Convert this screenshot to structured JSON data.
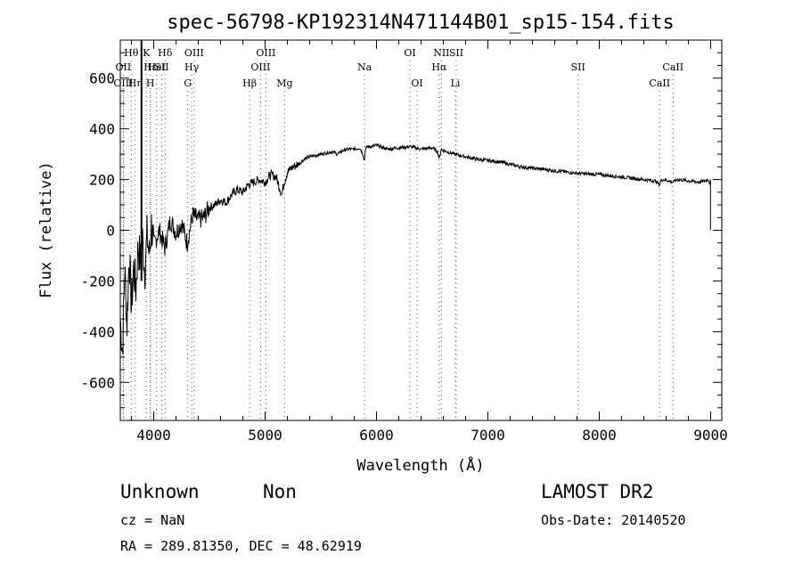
{
  "chart_data": {
    "type": "line",
    "title": "spec-56798-KP192314N471144B01_sp15-154.fits",
    "xlabel": "Wavelength (Å)",
    "ylabel": "Flux (relative)",
    "xlim": [
      3700,
      9100
    ],
    "ylim": [
      -750,
      750
    ],
    "x_ticks": [
      4000,
      5000,
      6000,
      7000,
      8000,
      9000
    ],
    "y_ticks": [
      -600,
      -400,
      -200,
      0,
      200,
      400,
      600
    ],
    "grid": false,
    "line_color": "#000000",
    "spectral_lines": [
      {
        "label": "Hθ",
        "wavelength": 3798,
        "row": 0
      },
      {
        "label": "OII",
        "wavelength": 3727,
        "row": 1
      },
      {
        "label": "OIII",
        "wavelength": 3727,
        "row": 2
      },
      {
        "label": "Hε",
        "wavelength": 3970,
        "row": 1
      },
      {
        "label": "Hη",
        "wavelength": 3835,
        "row": 2
      },
      {
        "label": "K",
        "wavelength": 3934,
        "row": 0
      },
      {
        "label": "H",
        "wavelength": 3969,
        "row": 2
      },
      {
        "label": "Hδ",
        "wavelength": 4102,
        "row": 0
      },
      {
        "label": "HeI",
        "wavelength": 4026,
        "row": 1
      },
      {
        "label": "SII",
        "wavelength": 4072,
        "row": 1
      },
      {
        "label": "OIII",
        "wavelength": 4363,
        "row": 0
      },
      {
        "label": "Hγ",
        "wavelength": 4341,
        "row": 1
      },
      {
        "label": "G",
        "wavelength": 4305,
        "row": 2
      },
      {
        "label": "Hβ",
        "wavelength": 4861,
        "row": 2
      },
      {
        "label": "OIII",
        "wavelength": 4959,
        "row": 1
      },
      {
        "label": "OIII",
        "wavelength": 5007,
        "row": 0
      },
      {
        "label": "Mg",
        "wavelength": 5175,
        "row": 2
      },
      {
        "label": "Na",
        "wavelength": 5893,
        "row": 1
      },
      {
        "label": "OI",
        "wavelength": 6300,
        "row": 0
      },
      {
        "label": "OI",
        "wavelength": 6364,
        "row": 2
      },
      {
        "label": "NII",
        "wavelength": 6583,
        "row": 0
      },
      {
        "label": "Hα",
        "wavelength": 6563,
        "row": 1
      },
      {
        "label": "SII",
        "wavelength": 6716,
        "row": 0
      },
      {
        "label": "Li",
        "wavelength": 6708,
        "row": 2
      },
      {
        "label": "SII",
        "wavelength": 7810,
        "row": 1
      },
      {
        "label": "CaII",
        "wavelength": 8662,
        "row": 1
      },
      {
        "label": "CaII",
        "wavelength": 8542,
        "row": 2
      }
    ],
    "series": [
      {
        "x": [
          3700,
          3720,
          3740,
          3760,
          3780,
          3800,
          3820,
          3840,
          3860,
          3880,
          3900,
          3920,
          3940,
          3960,
          3980,
          4000,
          4050,
          4100,
          4150,
          4200,
          4250,
          4300,
          4350,
          4400,
          4450,
          4500,
          4550,
          4600,
          4650,
          4700,
          4750,
          4800,
          4850,
          4900,
          4950,
          5000,
          5050,
          5100,
          5150,
          5170,
          5180,
          5200,
          5250,
          5300,
          5350,
          5400,
          5450,
          5500,
          5550,
          5600,
          5650,
          5700,
          5750,
          5800,
          5850,
          5880,
          5890,
          5900,
          5920,
          5950,
          6000,
          6100,
          6200,
          6300,
          6400,
          6500,
          6550,
          6563,
          6580,
          6600,
          6700,
          6800,
          6900,
          7000,
          7100,
          7200,
          7300,
          7400,
          7500,
          7600,
          7700,
          7800,
          7900,
          8000,
          8100,
          8200,
          8300,
          8400,
          8500,
          8542,
          8560,
          8600,
          8662,
          8700,
          8800,
          8900,
          8950,
          8980,
          8995,
          9000
        ],
        "y": [
          -350,
          -480,
          -150,
          -370,
          -90,
          -300,
          -150,
          -230,
          -60,
          -120,
          -40,
          -160,
          -20,
          -100,
          20,
          -60,
          0,
          -70,
          40,
          -10,
          30,
          -50,
          60,
          40,
          50,
          90,
          100,
          120,
          110,
          140,
          160,
          150,
          180,
          190,
          200,
          190,
          220,
          210,
          140,
          190,
          200,
          230,
          250,
          260,
          280,
          290,
          295,
          300,
          305,
          310,
          300,
          315,
          320,
          320,
          325,
          300,
          270,
          320,
          330,
          330,
          335,
          320,
          325,
          330,
          320,
          325,
          310,
          280,
          320,
          315,
          300,
          290,
          280,
          275,
          270,
          260,
          250,
          245,
          240,
          235,
          230,
          225,
          222,
          220,
          215,
          210,
          205,
          200,
          195,
          180,
          200,
          198,
          190,
          200,
          195,
          190,
          195,
          200,
          180,
          0
        ]
      }
    ]
  },
  "info": {
    "class_label": "Unknown",
    "subclass_label": "Non",
    "survey": "LAMOST DR2",
    "redshift": "cz = NaN",
    "obs_date": "Obs-Date: 20140520",
    "coords": "RA = 289.81350, DEC =  48.62919"
  }
}
